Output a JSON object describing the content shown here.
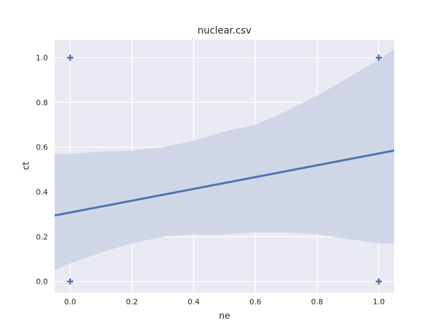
{
  "chart_data": {
    "type": "scatter",
    "title": "nuclear.csv",
    "xlabel": "ne",
    "ylabel": "ct",
    "xlim": [
      -0.05,
      1.05
    ],
    "ylim": [
      -0.05,
      1.08
    ],
    "xticks": [
      0.0,
      0.2,
      0.4,
      0.6,
      0.8,
      1.0
    ],
    "xtick_labels": [
      "0.0",
      "0.2",
      "0.4",
      "0.6",
      "0.8",
      "1.0"
    ],
    "yticks": [
      0.0,
      0.2,
      0.4,
      0.6,
      0.8,
      1.0
    ],
    "ytick_labels": [
      "0.0",
      "0.2",
      "0.4",
      "0.6",
      "0.8",
      "1.0"
    ],
    "grid": true,
    "points": {
      "marker": "plus",
      "x": [
        0.0,
        0.0,
        1.0,
        1.0
      ],
      "y": [
        1.0,
        0.0,
        1.0,
        0.0
      ]
    },
    "regression_line": {
      "x": [
        -0.05,
        1.05
      ],
      "y": [
        0.295,
        0.585
      ]
    },
    "confidence_band": {
      "x": [
        -0.05,
        0.0,
        0.1,
        0.2,
        0.3,
        0.4,
        0.5,
        0.6,
        0.7,
        0.8,
        0.9,
        1.0,
        1.05
      ],
      "upper": [
        0.57,
        0.57,
        0.58,
        0.585,
        0.6,
        0.63,
        0.67,
        0.7,
        0.76,
        0.83,
        0.91,
        0.99,
        1.04
      ],
      "lower": [
        0.05,
        0.08,
        0.13,
        0.17,
        0.2,
        0.21,
        0.21,
        0.22,
        0.22,
        0.21,
        0.19,
        0.17,
        0.17
      ]
    },
    "colors": {
      "background": "#eaeaf2",
      "grid": "#ffffff",
      "line": "#4c72b0",
      "band": "#cfd5e7",
      "marker": "#4c72b0",
      "text": "#262626"
    }
  }
}
